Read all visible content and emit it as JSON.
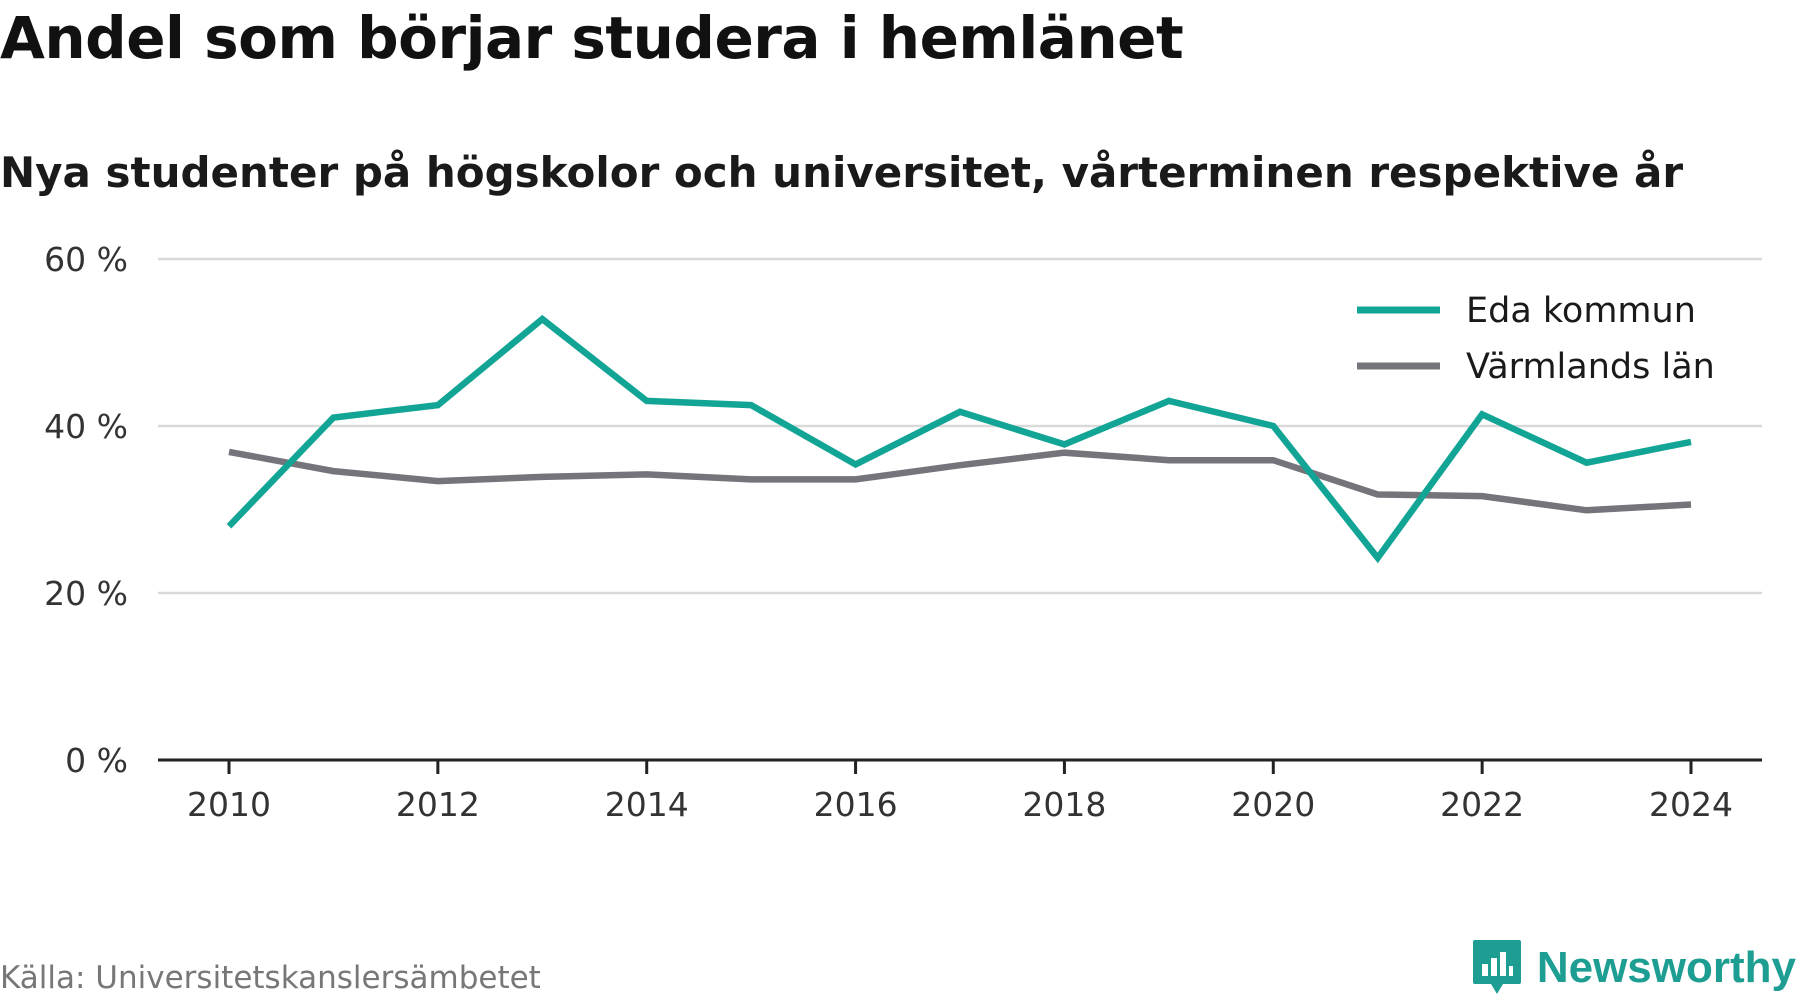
{
  "title": "Andel som börjar studera i hemlänet",
  "subtitle": "Nya studenter på högskolor och universitet, vårterminen respektive år",
  "source": "Källa: Universitetskanslersämbetet",
  "brand": "Newsworthy",
  "colors": {
    "series_1": "#12a596",
    "series_2": "#75747a",
    "grid": "#d9d9d9",
    "axis": "#222222",
    "brand": "#1e9e92"
  },
  "chart_data": {
    "type": "line",
    "x": [
      2010,
      2011,
      2012,
      2013,
      2014,
      2015,
      2016,
      2017,
      2018,
      2019,
      2020,
      2021,
      2022,
      2023,
      2024
    ],
    "series": [
      {
        "name": "Eda kommun",
        "color": "#12a596",
        "values": [
          28.0,
          41.0,
          42.5,
          52.8,
          43.0,
          42.5,
          35.4,
          41.7,
          37.8,
          43.0,
          40.0,
          24.2,
          41.4,
          35.6,
          38.1
        ]
      },
      {
        "name": "Värmlands län",
        "color": "#75747a",
        "values": [
          36.9,
          34.6,
          33.4,
          33.9,
          34.2,
          33.6,
          33.6,
          35.3,
          36.8,
          35.9,
          35.9,
          31.8,
          31.6,
          29.9,
          30.6
        ]
      }
    ],
    "y_ticks": [
      "0 %",
      "20 %",
      "40 %",
      "60 %"
    ],
    "y_tick_values": [
      0,
      20,
      40,
      60
    ],
    "x_ticks": [
      "2010",
      "2012",
      "2014",
      "2016",
      "2018",
      "2020",
      "2022",
      "2024"
    ],
    "x_tick_values": [
      2010,
      2012,
      2014,
      2016,
      2018,
      2020,
      2022,
      2024
    ],
    "ylim": [
      0,
      60
    ],
    "xlim": [
      2010,
      2024
    ],
    "grid": true,
    "legend_position": "top-right"
  }
}
